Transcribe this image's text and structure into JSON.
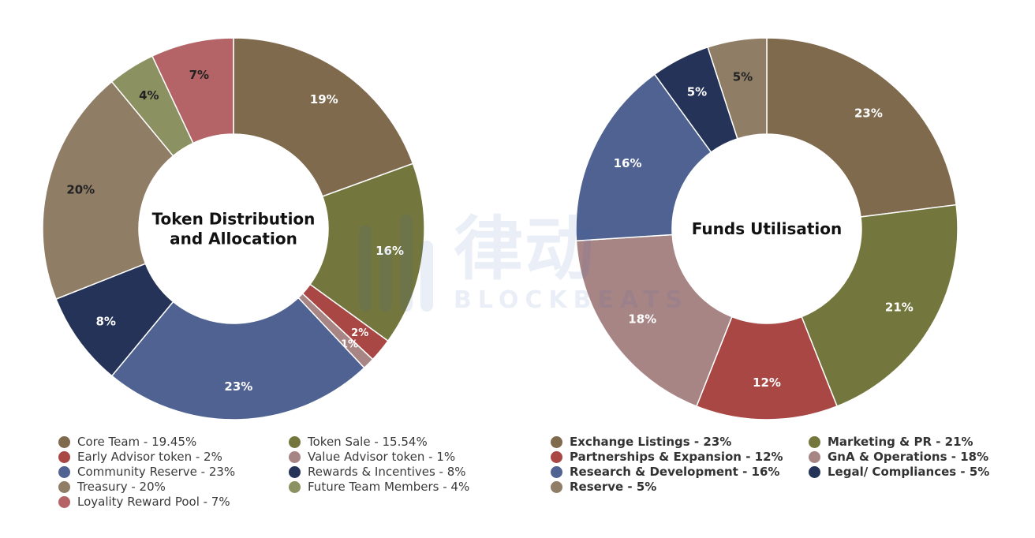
{
  "chart_data": [
    {
      "type": "pie",
      "title": "Token Distribution\nand Allocation",
      "slices": [
        {
          "label": "Core Team",
          "legend": "Core Team - 19.45%",
          "value": 19.45,
          "data_label": "19%",
          "color": "#7f6a4e",
          "label_color": "#ffffff"
        },
        {
          "label": "Token Sale",
          "legend": "Token Sale - 15.54%",
          "value": 15.54,
          "data_label": "16%",
          "color": "#74773d",
          "label_color": "#ffffff"
        },
        {
          "label": "Early Advisor token",
          "legend": "Early Advisor token - 2%",
          "value": 2,
          "data_label": "2%",
          "color": "#a84744",
          "label_color": "#ffffff"
        },
        {
          "label": "Value Advisor token",
          "legend": "Value Advisor token - 1%",
          "value": 1,
          "data_label": "1%",
          "color": "#a88585",
          "label_color": "#ffffff"
        },
        {
          "label": "Community Reserve",
          "legend": "Community Reserve - 23%",
          "value": 23,
          "data_label": "23%",
          "color": "#4f6291",
          "label_color": "#ffffff"
        },
        {
          "label": "Rewards & Incentives",
          "legend": "Rewards & Incentives - 8%",
          "value": 8,
          "data_label": "8%",
          "color": "#243357",
          "label_color": "#ffffff"
        },
        {
          "label": "Treasury",
          "legend": "Treasury - 20%",
          "value": 20,
          "data_label": "20%",
          "color": "#8f7d66",
          "label_color": "#222222"
        },
        {
          "label": "Future Team Members",
          "legend": "Future Team Members - 4%",
          "value": 4,
          "data_label": "4%",
          "color": "#8b9161",
          "label_color": "#222222"
        },
        {
          "label": "Loyality Reward Pool",
          "legend": "Loyality Reward Pool - 7%",
          "value": 7,
          "data_label": "7%",
          "color": "#b46467",
          "label_color": "#222222"
        }
      ],
      "legend_order": [
        0,
        1,
        2,
        3,
        4,
        5,
        6,
        7,
        8
      ]
    },
    {
      "type": "pie",
      "title": "Funds Utilisation",
      "slices": [
        {
          "label": "Exchange Listings",
          "legend": "Exchange Listings - 23%",
          "value": 23,
          "data_label": "23%",
          "color": "#7f6a4e",
          "label_color": "#ffffff"
        },
        {
          "label": "Marketing & PR",
          "legend": "Marketing & PR - 21%",
          "value": 21,
          "data_label": "21%",
          "color": "#74773d",
          "label_color": "#ffffff"
        },
        {
          "label": "Partnerships & Expansion",
          "legend": "Partnerships & Expansion - 12%",
          "value": 12,
          "data_label": "12%",
          "color": "#a84744",
          "label_color": "#ffffff"
        },
        {
          "label": "GnA & Operations",
          "legend": "GnA & Operations - 18%",
          "value": 18,
          "data_label": "18%",
          "color": "#a88585",
          "label_color": "#ffffff"
        },
        {
          "label": "Research & Development",
          "legend": "Research & Development - 16%",
          "value": 16,
          "data_label": "16%",
          "color": "#4f6291",
          "label_color": "#ffffff"
        },
        {
          "label": "Legal/ Compliances",
          "legend": "Legal/ Compliances - 5%",
          "value": 5,
          "data_label": "5%",
          "color": "#243357",
          "label_color": "#ffffff"
        },
        {
          "label": "Reserve",
          "legend": "Reserve - 5%",
          "value": 5,
          "data_label": "5%",
          "color": "#8f7d66",
          "label_color": "#222222"
        }
      ],
      "legend_order": [
        0,
        1,
        2,
        3,
        4,
        5,
        6
      ]
    }
  ],
  "watermark": {
    "main": "律动",
    "sub": "BLOCKBEATS"
  }
}
